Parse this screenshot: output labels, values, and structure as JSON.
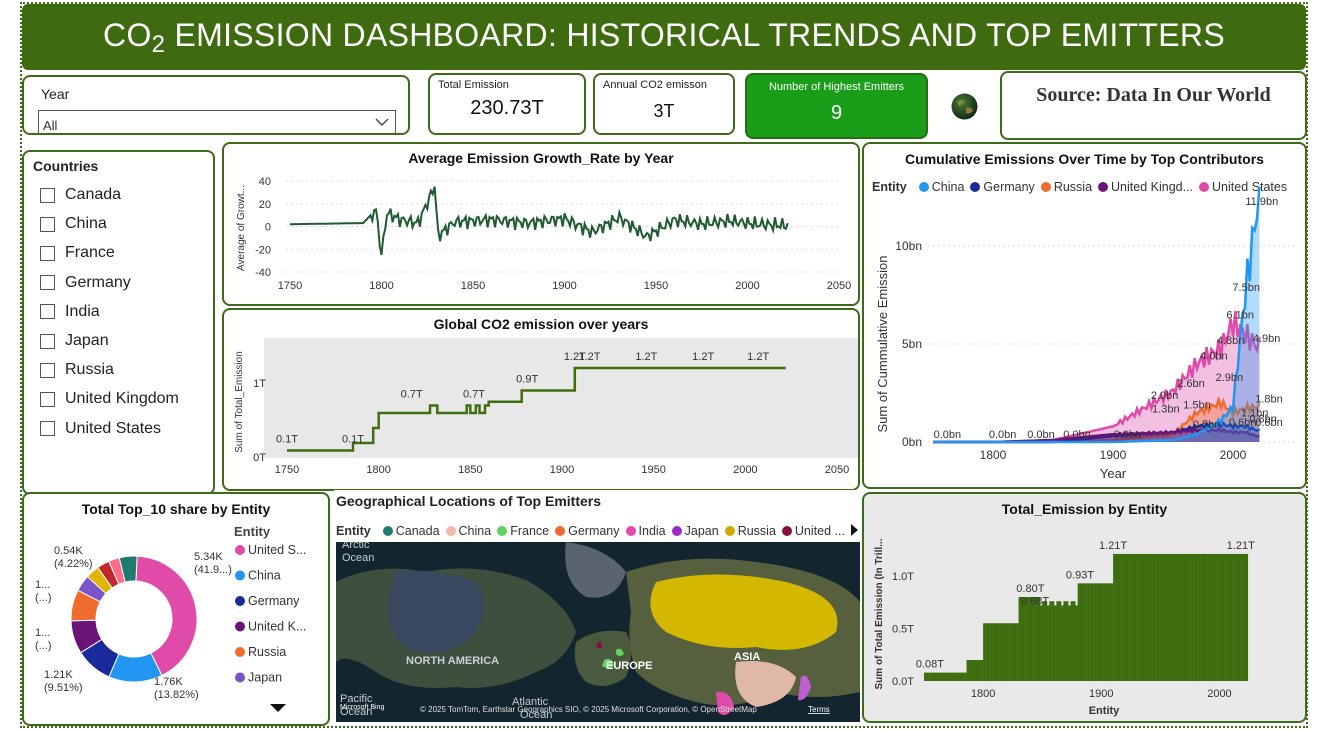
{
  "header": {
    "title_pre": "CO",
    "title_sub": "2",
    "title_post": " EMISSION DASHBOARD: HISTORICAL TRENDS AND TOP EMITTERS"
  },
  "year_filter": {
    "label": "Year",
    "value": "All"
  },
  "kpis": {
    "total_emission": {
      "label": "Total Emission",
      "value": "230.73T"
    },
    "annual": {
      "label": "Annual CO2 emisson",
      "value": "3T"
    },
    "highest": {
      "label": "Number of Highest Emitters",
      "value": "9"
    }
  },
  "source": {
    "text": "Source: Data In Our World"
  },
  "countries": {
    "title": "Countries",
    "items": [
      "Canada",
      "China",
      "France",
      "Germany",
      "India",
      "Japan",
      "Russia",
      "United Kingdom",
      "United States"
    ]
  },
  "colors": {
    "brand": "#3e6b0f",
    "kpi_green": "#1a9e1a",
    "line_dark": "#1f5a30",
    "bar_green": "#3f6e10",
    "china": "#2196f3",
    "germany": "#1a2a9a",
    "russia": "#ef6c2c",
    "uk": "#6a1478",
    "us": "#e04aa8"
  },
  "growth_chart": {
    "title": "Average Emission Growth_Rate by Year",
    "ylabel": "Average of Growt...",
    "y_ticks": [
      "40",
      "20",
      "0",
      "-20",
      "-40"
    ],
    "x_ticks": [
      "1750",
      "1800",
      "1850",
      "1900",
      "1950",
      "2000",
      "2050"
    ]
  },
  "global_chart": {
    "title": "Global CO2 emission over years",
    "ylabel": "Sum of Total_Emission",
    "y_ticks": [
      "1T",
      "0T"
    ],
    "x_ticks": [
      "1750",
      "1800",
      "1850",
      "1900",
      "1950",
      "2000",
      "2050"
    ],
    "labels": [
      "0.1T",
      "0.1T",
      "0.7T",
      "0.7T",
      "0.9T",
      "1.2T",
      "1.2T",
      "1.2T",
      "1.2T",
      "1.2T"
    ]
  },
  "cumulative_chart": {
    "title": "Cumulative Emissions Over Time by Top Contributors",
    "legend_title": "Entity",
    "legend": [
      "China",
      "Germany",
      "Russia",
      "United Kingd...",
      "United States"
    ],
    "ylabel": "Sum of Cummulative Emission",
    "xlabel": "Year",
    "y_ticks": [
      "10bn",
      "5bn",
      "0bn"
    ],
    "x_ticks": [
      "1800",
      "1900",
      "2000"
    ],
    "labels": [
      "0.0bn",
      "0.0bn",
      "0.0bn",
      "0.0bn",
      "0.0bn",
      "2.0bn",
      "1.3bn",
      "2.6bn",
      "4.0bn",
      "4.8bn",
      "6.1bn",
      "7.5bn",
      "11.9bn",
      "1.5bn",
      "2.9bn",
      "0.5bn",
      "0.6bn",
      "4.9bn",
      "1.8bn",
      "0.6bn",
      "0.8bn",
      "1.1bn"
    ]
  },
  "donut_chart": {
    "title": "Total Top_10 share by Entity",
    "legend_title": "Entity",
    "legend": [
      "United S...",
      "China",
      "Germany",
      "United K...",
      "Russia",
      "Japan"
    ],
    "labels": {
      "us": [
        "5.34K",
        "(41.9...)"
      ],
      "china": [
        "1.76K",
        "(13.82%)"
      ],
      "germany": [
        "1.21K",
        "(9.51%)"
      ],
      "uk": [
        "1...",
        "(...)"
      ],
      "russia": [
        "1...",
        "(...)"
      ],
      "japan": [
        "0.54K",
        "(4.22%)"
      ]
    }
  },
  "map": {
    "title": "Geographical Locations of Top Emitters",
    "legend_title": "Entity",
    "legend": [
      "Canada",
      "China",
      "France",
      "Germany",
      "India",
      "Japan",
      "Russia",
      "United ..."
    ],
    "labels": [
      "Arctic",
      "Ocean",
      "NORTH AMERICA",
      "EUROPE",
      "ASIA",
      "Pacific",
      "Ocean",
      "Atlantic",
      "Ocean"
    ],
    "bing": "Microsoft Bing",
    "copyright": "© 2025 TomTom, Earthstar Geographics SIO, © 2025 Microsoft Corporation, © OpenStreetMap",
    "terms": "Terms"
  },
  "entity_chart": {
    "title": "Total_Emission by Entity",
    "ylabel": "Sum of Total Emission (In Trill...",
    "xlabel": "Entity",
    "y_ticks": [
      "1.0T",
      "0.5T",
      "0.0T"
    ],
    "x_ticks": [
      "1800",
      "1900",
      "2000"
    ],
    "labels": [
      "1.21T",
      "1.21T",
      "0.93T",
      "0.80T",
      "0.68T",
      "0.08T"
    ]
  },
  "chart_data": [
    {
      "type": "line",
      "title": "Average Emission Growth_Rate by Year",
      "ylabel": "Average of Growt...",
      "xlim": [
        1750,
        2050
      ],
      "ylim": [
        -40,
        40
      ],
      "x": [
        1750,
        1790,
        1797,
        1800,
        1803,
        1810,
        1820,
        1829,
        1831,
        1840,
        1860,
        1880,
        1900,
        1915,
        1930,
        1945,
        1960,
        1975,
        1990,
        2005,
        2022
      ],
      "values": [
        2,
        3,
        15,
        -25,
        12,
        6,
        3,
        35,
        -8,
        4,
        6,
        3,
        7,
        -5,
        8,
        -9,
        6,
        2,
        5,
        2,
        1
      ]
    },
    {
      "type": "line",
      "title": "Global CO2 emission over years",
      "ylabel": "Sum of Total_Emission",
      "xlim": [
        1750,
        2050
      ],
      "x": [
        1750,
        1786,
        1797,
        1800,
        1830,
        1845,
        1855,
        1878,
        1905,
        1907,
        2022
      ],
      "values": [
        0.1,
        0.1,
        0.2,
        0.6,
        0.7,
        0.6,
        0.7,
        0.9,
        0.9,
        1.2,
        1.2
      ]
    },
    {
      "type": "area",
      "title": "Cumulative Emissions Over Time by Top Contributors",
      "xlabel": "Year",
      "ylabel": "Sum of Cummulative Emission",
      "x": [
        1750,
        1800,
        1850,
        1900,
        1950,
        1970,
        1990,
        2000,
        2010,
        2020
      ],
      "series": [
        {
          "name": "China",
          "values": [
            0,
            0,
            0,
            0,
            0.1,
            0.4,
            1.1,
            1.8,
            7.5,
            11.9
          ]
        },
        {
          "name": "Germany",
          "values": [
            0,
            0,
            0,
            0.3,
            0.5,
            0.8,
            0.9,
            0.8,
            0.8,
            0.6
          ]
        },
        {
          "name": "Russia",
          "values": [
            0,
            0,
            0,
            0.1,
            0.4,
            1.5,
            2.0,
            1.5,
            1.7,
            1.8
          ]
        },
        {
          "name": "United Kingd...",
          "values": [
            0,
            0,
            0.1,
            0.4,
            0.5,
            0.6,
            0.6,
            0.5,
            0.5,
            0.3
          ]
        },
        {
          "name": "United States",
          "values": [
            0,
            0,
            0.1,
            0.8,
            2.6,
            4.0,
            4.8,
            6.1,
            5.5,
            4.9
          ]
        }
      ]
    },
    {
      "type": "pie",
      "title": "Total Top_10 share by Entity",
      "categories": [
        "United S...",
        "China",
        "Germany",
        "United K...",
        "Russia",
        "Japan"
      ],
      "values": [
        41.9,
        13.82,
        9.51,
        8.5,
        8.0,
        4.22
      ]
    },
    {
      "type": "bar",
      "title": "Total_Emission by Entity",
      "xlabel": "Entity",
      "ylabel": "Sum of Total Emission (In Trill...",
      "x": [
        1750,
        1785,
        1800,
        1830,
        1835,
        1850,
        1880,
        1910,
        2022
      ],
      "values": [
        0.08,
        0.2,
        0.55,
        0.68,
        0.8,
        0.76,
        0.93,
        1.21,
        1.21
      ]
    }
  ]
}
